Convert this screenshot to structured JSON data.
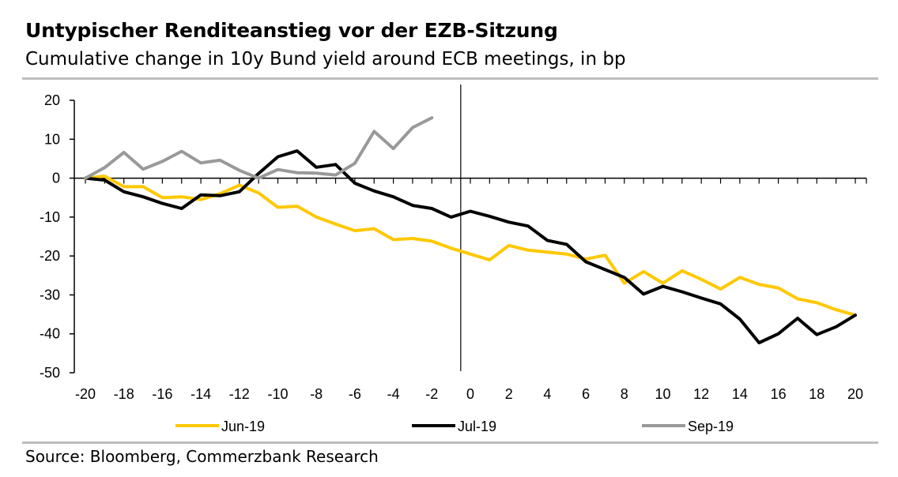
{
  "header": {
    "title": "Untypischer Renditeanstieg vor der EZB-Sitzung",
    "subtitle": "Cumulative change in 10y Bund yield around ECB meetings, in bp"
  },
  "footer": {
    "source": "Source: Bloomberg, Commerzbank Research"
  },
  "chart_data": {
    "type": "line",
    "title": "Untypischer Renditeanstieg vor der EZB-Sitzung",
    "subtitle": "Cumulative change in 10y Bund yield around ECB meetings, in bp",
    "xlabel": "",
    "ylabel": "",
    "xlim": [
      -20,
      20
    ],
    "ylim": [
      -50,
      20
    ],
    "x_ticks": [
      -20,
      -18,
      -16,
      -14,
      -12,
      -10,
      -8,
      -6,
      -4,
      -2,
      0,
      2,
      4,
      6,
      8,
      10,
      12,
      14,
      16,
      18,
      20
    ],
    "x_tick_labels": [
      "-20",
      "-18",
      "-16",
      "-14",
      "-12",
      "-10",
      "-8",
      "-6",
      "-4",
      "-2",
      "0",
      "2",
      "4",
      "6",
      "8",
      "10",
      "12",
      "14",
      "16",
      "18",
      "20"
    ],
    "y_ticks": [
      20,
      10,
      0,
      -10,
      -20,
      -30,
      -40,
      -50
    ],
    "y_tick_labels": [
      "20",
      "10",
      "0",
      "-10",
      "-20",
      "-30",
      "-40",
      "-50"
    ],
    "vertical_marker_x": -0.5,
    "legend_position": "bottom",
    "grid": false,
    "series": [
      {
        "name": "Jun-19",
        "color": "#FFC800",
        "x": [
          -20,
          -19,
          -18,
          -17,
          -16,
          -15,
          -14,
          -13,
          -12,
          -11,
          -10,
          -9,
          -8,
          -7,
          -6,
          -5,
          -4,
          -3,
          -2,
          -1,
          0,
          1,
          2,
          3,
          4,
          5,
          6,
          7,
          8,
          9,
          10,
          11,
          12,
          13,
          14,
          15,
          16,
          17,
          18,
          19,
          20
        ],
        "y": [
          0,
          0.5,
          -2.2,
          -2.2,
          -5,
          -4.8,
          -5.5,
          -4,
          -1.8,
          -3.8,
          -7.5,
          -7.2,
          -10,
          -11.8,
          -13.5,
          -13,
          -15.8,
          -15.5,
          -16.2,
          -18,
          -19.5,
          -21,
          -17.3,
          -18.5,
          -19,
          -19.5,
          -20.8,
          -19.8,
          -27,
          -24,
          -27,
          -23.8,
          -26,
          -28.5,
          -25.5,
          -27.3,
          -28.2,
          -31,
          -32,
          -33.8,
          -35.2
        ]
      },
      {
        "name": "Jul-19",
        "color": "#000000",
        "x": [
          -20,
          -19,
          -18,
          -17,
          -16,
          -15,
          -14,
          -13,
          -12,
          -11,
          -10,
          -9,
          -8,
          -7,
          -6,
          -5,
          -4,
          -3,
          -2,
          -1,
          0,
          1,
          2,
          3,
          4,
          5,
          6,
          7,
          8,
          9,
          10,
          11,
          12,
          13,
          14,
          15,
          16,
          17,
          18,
          19,
          20
        ],
        "y": [
          0,
          -0.5,
          -3.5,
          -4.8,
          -6.5,
          -7.8,
          -4.3,
          -4.5,
          -3.5,
          1.2,
          5.5,
          7,
          2.8,
          3.5,
          -1.3,
          -3.3,
          -4.8,
          -7,
          -7.8,
          -10,
          -8.5,
          -9.8,
          -11.3,
          -12.3,
          -16,
          -17,
          -21.5,
          -23.5,
          -25.5,
          -29.8,
          -27.8,
          -29.2,
          -30.8,
          -32.3,
          -36.2,
          -42.3,
          -40,
          -36,
          -40.2,
          -38.2,
          -35.2
        ]
      },
      {
        "name": "Sep-19",
        "color": "#999999",
        "x": [
          -20,
          -19,
          -18,
          -17,
          -16,
          -15,
          -14,
          -13,
          -12,
          -11,
          -10,
          -9,
          -8,
          -7,
          -6,
          -5,
          -4,
          -3,
          -2
        ],
        "y": [
          0,
          2.7,
          6.6,
          2.3,
          4.3,
          6.9,
          3.9,
          4.6,
          2,
          0,
          2.2,
          1.4,
          1.3,
          0.8,
          3.8,
          12,
          7.6,
          13,
          15.5
        ]
      }
    ]
  }
}
